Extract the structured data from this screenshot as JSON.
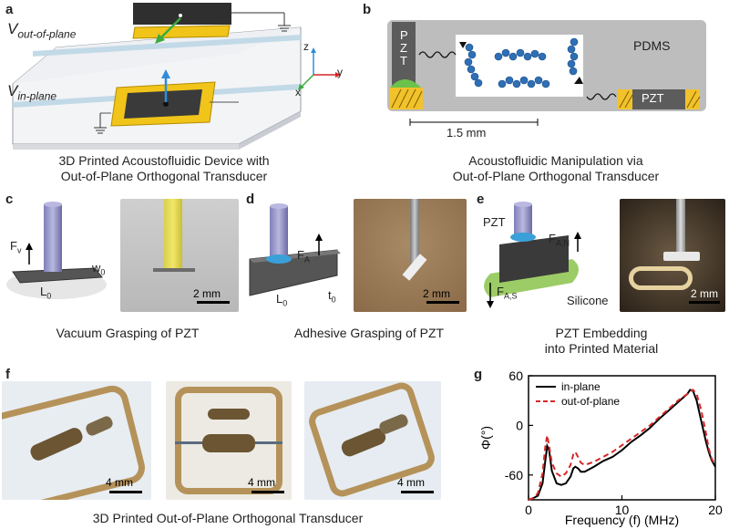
{
  "panels": {
    "a": {
      "label": "a",
      "v_out_main": "V",
      "v_out_sub": "out-of-plane",
      "v_in_main": "V",
      "v_in_sub": "in-plane",
      "axis_z": "z",
      "axis_x": "x",
      "axis_y": "y",
      "caption_line1": "3D Printed Acoustofluidic Device with",
      "caption_line2": "Out-of-Plane Orthogonal Transducer"
    },
    "b": {
      "label": "b",
      "pzt_left": "PZT",
      "pzt_right": "PZT",
      "material": "PDMS",
      "scale": "1.5 mm",
      "caption_line1": "Acoustofluidic Manipulation via",
      "caption_line2": "Out-of-Plane Orthogonal Transducer"
    },
    "c": {
      "label": "c",
      "force": "F",
      "force_sub": "v",
      "width": "w",
      "width_sub": "0",
      "length": "L",
      "length_sub": "0",
      "scale": "2 mm",
      "caption": "Vacuum Grasping of PZT"
    },
    "d": {
      "label": "d",
      "force": "F",
      "force_sub": "A",
      "length": "L",
      "length_sub": "0",
      "thickness": "t",
      "thickness_sub": "0",
      "scale": "2 mm",
      "caption": "Adhesive Grasping of PZT"
    },
    "e": {
      "label": "e",
      "pzt": "PZT",
      "force_n": "F",
      "force_n_sub": "A,N",
      "force_s": "F",
      "force_s_sub": "A,S",
      "material": "Silicone",
      "scale": "2 mm",
      "caption_line1": "PZT Embedding",
      "caption_line2": "into Printed Material"
    },
    "f": {
      "label": "f",
      "scale1": "4 mm",
      "scale2": "4 mm",
      "scale3": "4 mm",
      "caption": "3D Printed Out-of-Plane Orthogonal Transducer"
    },
    "g": {
      "label": "g"
    }
  },
  "chart_data": {
    "type": "line",
    "xlabel": "Frequency (f) (MHz)",
    "ylabel": "Φ(°)",
    "xlim": [
      0,
      20
    ],
    "ylim": [
      -90,
      60
    ],
    "xticks": [
      0,
      10,
      20
    ],
    "yticks": [
      60,
      0,
      -60
    ],
    "legend_position": "top-left",
    "series": [
      {
        "name": "in-plane",
        "color": "#000000",
        "dash": "solid",
        "x": [
          0,
          0.5,
          1.0,
          1.5,
          1.8,
          2.0,
          2.2,
          2.5,
          3.0,
          3.5,
          4.0,
          4.5,
          4.8,
          5.0,
          5.3,
          5.6,
          6,
          7,
          8,
          9,
          10,
          11,
          12,
          13,
          14,
          15,
          16,
          16.5,
          17,
          17.3,
          17.6,
          18,
          18.5,
          19,
          19.3,
          19.6,
          20
        ],
        "y": [
          -90,
          -88,
          -85,
          -70,
          -42,
          -25,
          -30,
          -55,
          -70,
          -72,
          -70,
          -62,
          -52,
          -50,
          -52,
          -56,
          -56,
          -50,
          -43,
          -38,
          -30,
          -20,
          -12,
          -3,
          8,
          18,
          28,
          33,
          38,
          43,
          42,
          30,
          5,
          -20,
          -32,
          -42,
          -50
        ]
      },
      {
        "name": "out-of-plane",
        "color": "#d62728",
        "dash": "dashed",
        "x": [
          0,
          0.5,
          1.0,
          1.5,
          1.8,
          2.0,
          2.2,
          2.5,
          3.0,
          3.5,
          4.0,
          4.5,
          4.8,
          5.0,
          5.3,
          5.6,
          6,
          7,
          8,
          9,
          10,
          11,
          12,
          13,
          14,
          15,
          16,
          16.5,
          17,
          17.3,
          17.6,
          18,
          18.5,
          19,
          19.3,
          19.6,
          20
        ],
        "y": [
          -90,
          -88,
          -82,
          -58,
          -25,
          -12,
          -25,
          -45,
          -58,
          -62,
          -58,
          -48,
          -35,
          -32,
          -38,
          -45,
          -48,
          -44,
          -38,
          -32,
          -24,
          -16,
          -8,
          0,
          10,
          20,
          30,
          34,
          38,
          41,
          43,
          38,
          18,
          -10,
          -28,
          -40,
          -48
        ]
      }
    ]
  }
}
